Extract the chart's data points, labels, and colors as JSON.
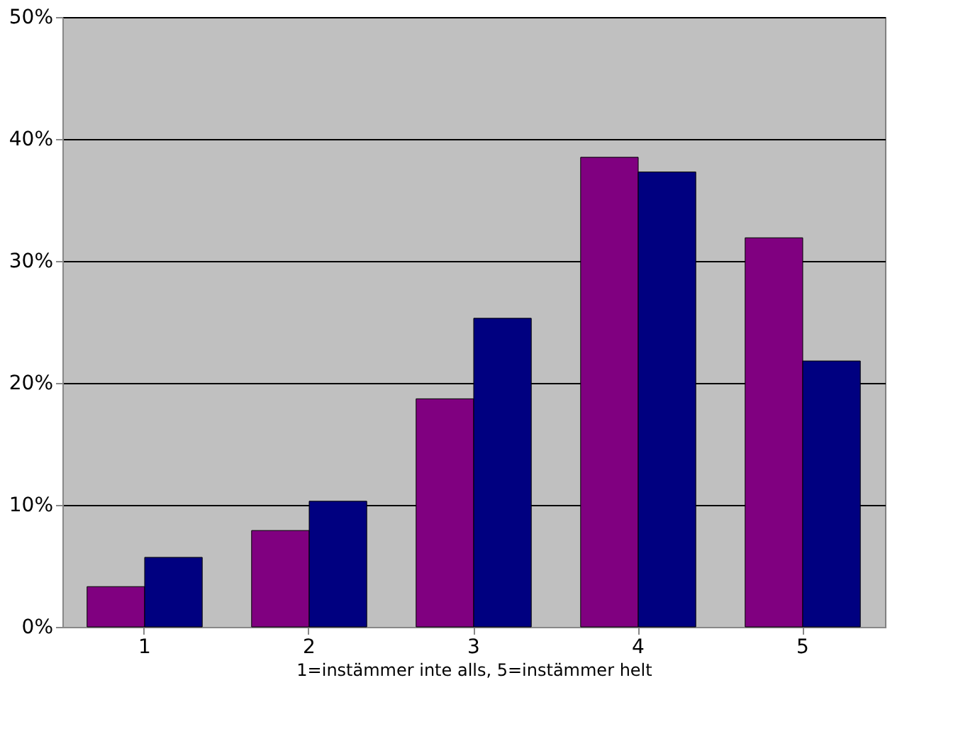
{
  "chart_data": {
    "type": "bar",
    "xlabel": "1=instämmer inte alls, 5=instämmer helt",
    "categories": [
      "1",
      "2",
      "3",
      "4",
      "5"
    ],
    "series": [
      {
        "color": "#800080",
        "values": [
          3.3,
          7.9,
          18.7,
          38.5,
          31.9
        ]
      },
      {
        "color": "#000080",
        "values": [
          5.7,
          10.3,
          25.3,
          37.3,
          21.8
        ]
      }
    ],
    "ylim": [
      0,
      50
    ],
    "yticks": [
      {
        "value": 0,
        "label": "0%"
      },
      {
        "value": 10,
        "label": "10%"
      },
      {
        "value": 20,
        "label": "20%"
      },
      {
        "value": 30,
        "label": "30%"
      },
      {
        "value": 40,
        "label": "40%"
      },
      {
        "value": 50,
        "label": "50%"
      }
    ],
    "grid": "y",
    "legend": false
  }
}
